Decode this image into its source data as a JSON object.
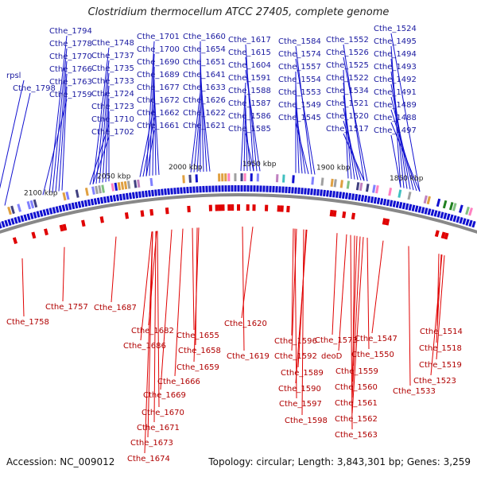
{
  "title": "Clostridium thermocellum ATCC 27405, complete genome",
  "footer": {
    "accession": "Accession: NC_009012",
    "summary": "Topology: circular; Length: 3,843,301 bp; Genes: 3,259"
  },
  "colors": {
    "forward": "#1010d0",
    "reverse": "#e00000",
    "backbone": "#888888"
  },
  "ticks": [
    "2100 kbp",
    "2050 kbp",
    "2000 kbp",
    "1950 kbp",
    "1900 kbp",
    "1850 kbp"
  ],
  "forward_labels": [
    "rpsl",
    "Cthe_1798",
    "Cthe_1794",
    "Cthe_1778",
    "Cthe_1770",
    "Cthe_1766",
    "Cthe_1763",
    "Cthe_1759",
    "Cthe_1748",
    "Cthe_1737",
    "Cthe_1735",
    "Cthe_1733",
    "Cthe_1724",
    "Cthe_1723",
    "Cthe_1710",
    "Cthe_1702",
    "Cthe_1701",
    "Cthe_1700",
    "Cthe_1690",
    "Cthe_1689",
    "Cthe_1677",
    "Cthe_1672",
    "Cthe_1662",
    "Cthe_1661",
    "Cthe_1660",
    "Cthe_1654",
    "Cthe_1651",
    "Cthe_1641",
    "Cthe_1633",
    "Cthe_1626",
    "Cthe_1622",
    "Cthe_1621",
    "Cthe_1617",
    "Cthe_1615",
    "Cthe_1604",
    "Cthe_1591",
    "Cthe_1588",
    "Cthe_1587",
    "Cthe_1586",
    "Cthe_1585",
    "Cthe_1584",
    "Cthe_1574",
    "Cthe_1557",
    "Cthe_1554",
    "Cthe_1553",
    "Cthe_1549",
    "Cthe_1545",
    "Cthe_1552",
    "Cthe_1526",
    "Cthe_1525",
    "Cthe_1522",
    "Cthe_1534",
    "Cthe_1521",
    "Cthe_1520",
    "Cthe_1517",
    "Cthe_1524",
    "Cthe_1495",
    "Cthe_1494",
    "Cthe_1493",
    "Cthe_1492",
    "Cthe_1491",
    "Cthe_1489",
    "Cthe_1488",
    "Cthe_1497"
  ],
  "reverse_labels": [
    "Cthe_1758",
    "Cthe_1757",
    "Cthe_1687",
    "Cthe_1682",
    "Cthe_1686",
    "Cthe_1655",
    "Cthe_1658",
    "Cthe_1659",
    "Cthe_1666",
    "Cthe_1669",
    "Cthe_1670",
    "Cthe_1671",
    "Cthe_1673",
    "Cthe_1674",
    "Cthe_1620",
    "Cthe_1619",
    "Cthe_1596",
    "Cthe_1592",
    "Cthe_1589",
    "Cthe_1590",
    "Cthe_1597",
    "Cthe_1598",
    "Cthe_1573",
    "deoD",
    "Cthe_1547",
    "Cthe_1550",
    "Cthe_1559",
    "Cthe_1560",
    "Cthe_1561",
    "Cthe_1562",
    "Cthe_1563",
    "Cthe_1514",
    "Cthe_1518",
    "Cthe_1519",
    "Cthe_1523",
    "Cthe_1533"
  ]
}
